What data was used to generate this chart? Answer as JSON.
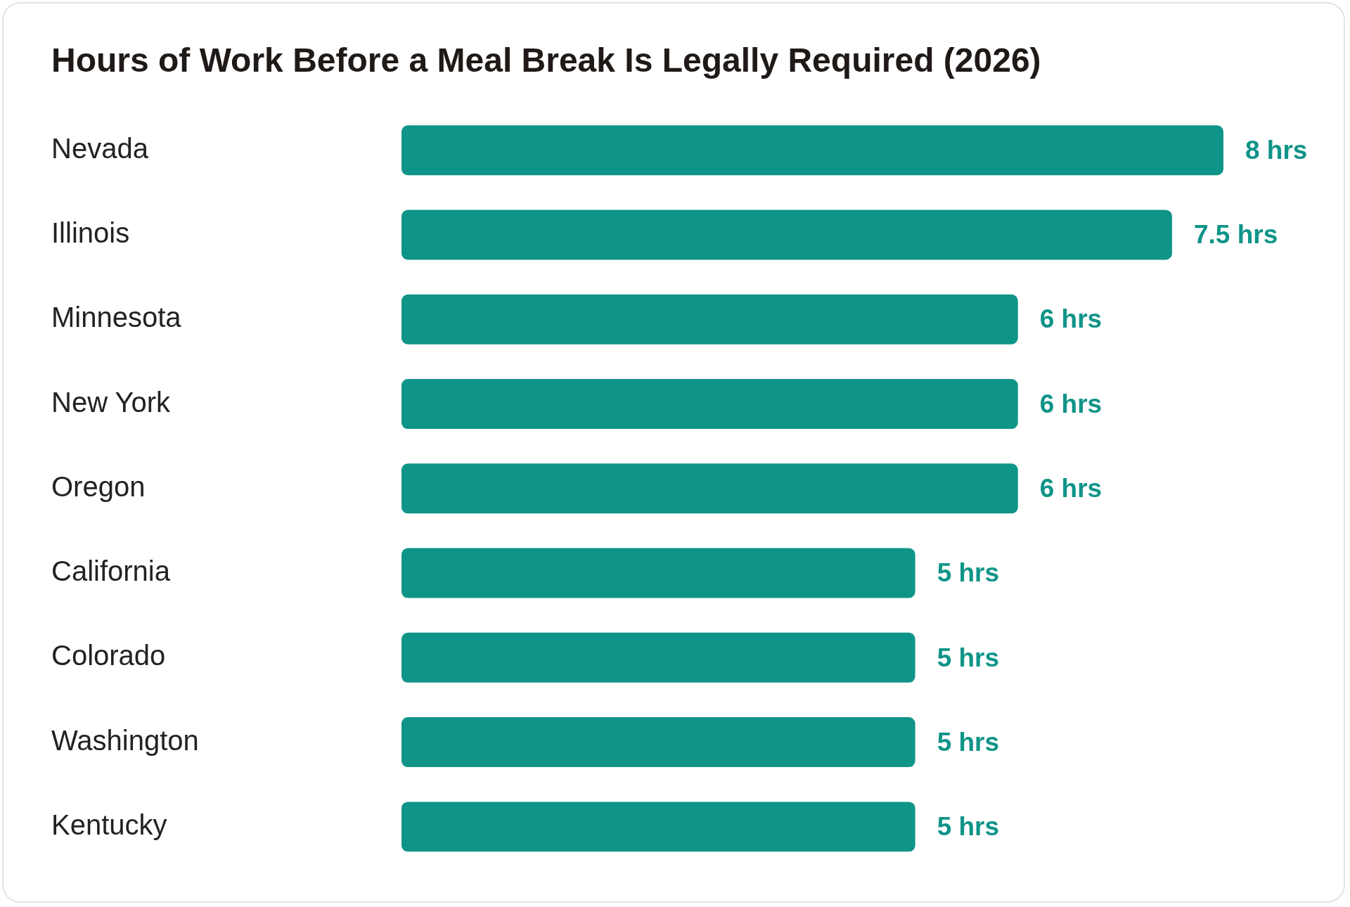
{
  "chart_data": {
    "type": "bar",
    "orientation": "horizontal",
    "title": "Hours of Work Before a Meal Break Is Legally Required (2026)",
    "categories": [
      "Nevada",
      "Illinois",
      "Minnesota",
      "New York",
      "Oregon",
      "California",
      "Colorado",
      "Washington",
      "Kentucky"
    ],
    "values": [
      8,
      7.5,
      6,
      6,
      6,
      5,
      5,
      5,
      5
    ],
    "value_labels": [
      "8 hrs",
      "7.5 hrs",
      "6 hrs",
      "6 hrs",
      "6 hrs",
      "5 hrs",
      "5 hrs",
      "5 hrs",
      "5 hrs"
    ],
    "color": "#0f9488",
    "legend": false
  }
}
